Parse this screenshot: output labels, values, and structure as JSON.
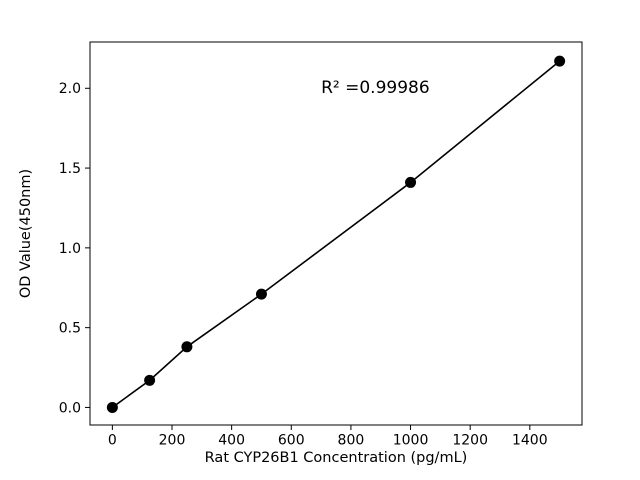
{
  "figure": {
    "background": "#ffffff"
  },
  "chart_data": {
    "type": "scatter",
    "title": "",
    "xlabel": "Rat CYP26B1 Concentration (pg/mL)",
    "ylabel": "OD Value(450nm)",
    "x": [
      0,
      125,
      250,
      500,
      1000,
      1500
    ],
    "y": [
      0.0,
      0.17,
      0.38,
      0.71,
      1.41,
      2.17
    ],
    "line_through_points": true,
    "marker": "circle",
    "marker_color": "#000000",
    "line_color": "#000000",
    "xlim": [
      -75,
      1575
    ],
    "ylim": [
      -0.11,
      2.29
    ],
    "xticks": [
      0,
      200,
      400,
      600,
      800,
      1000,
      1200,
      1400
    ],
    "yticks": [
      0.0,
      0.5,
      1.0,
      1.5,
      2.0
    ],
    "grid": false,
    "legend": null,
    "annotation": {
      "text": "R² =0.99986",
      "x": 700,
      "y": 1.97
    }
  }
}
